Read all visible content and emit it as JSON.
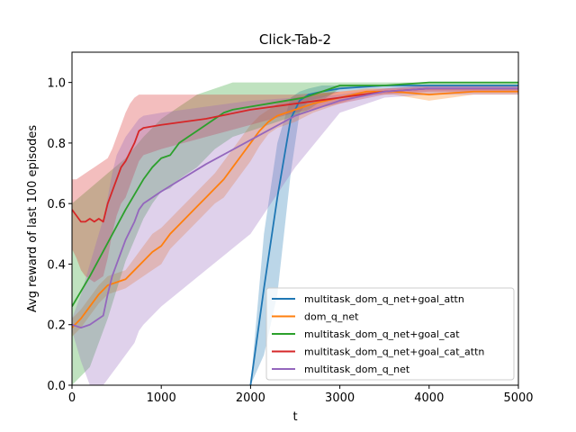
{
  "chart_data": {
    "type": "line",
    "title": "Click-Tab-2",
    "xlabel": "t",
    "ylabel": "Avg reward of last 100 episodes",
    "xlim": [
      0,
      5000
    ],
    "ylim": [
      0,
      1.1
    ],
    "xticks": [
      0,
      1000,
      2000,
      3000,
      4000,
      5000
    ],
    "yticks": [
      0.0,
      0.2,
      0.4,
      0.6,
      0.8,
      1.0
    ],
    "xtick_labels": [
      "0",
      "1000",
      "2000",
      "3000",
      "4000",
      "5000"
    ],
    "ytick_labels": [
      "0.0",
      "0.2",
      "0.4",
      "0.6",
      "0.8",
      "1.0"
    ],
    "grid": false,
    "legend_position": "lower-right",
    "series": [
      {
        "name": "multitask_dom_q_net+goal_attn",
        "color": "#1f77b4",
        "x": [
          2000,
          2150,
          2300,
          2450,
          2550,
          2650,
          2800,
          3000,
          3500,
          4000,
          4500,
          5000
        ],
        "y": [
          0.0,
          0.32,
          0.62,
          0.88,
          0.94,
          0.96,
          0.97,
          0.98,
          0.99,
          0.99,
          0.99,
          0.99
        ],
        "band_upper": [
          0.0,
          0.5,
          0.8,
          0.95,
          0.97,
          0.98,
          0.99,
          0.99,
          0.99,
          0.99,
          0.99,
          0.99
        ],
        "band_lower": [
          0.0,
          0.1,
          0.3,
          0.7,
          0.9,
          0.94,
          0.95,
          0.97,
          0.98,
          0.98,
          0.98,
          0.98
        ]
      },
      {
        "name": "dom_q_net",
        "color": "#ff7f0e",
        "x": [
          0,
          100,
          200,
          300,
          400,
          500,
          600,
          700,
          800,
          900,
          1000,
          1100,
          1200,
          1300,
          1400,
          1500,
          1600,
          1700,
          1800,
          1900,
          2000,
          2100,
          2200,
          2300,
          2400,
          2500,
          2700,
          3000,
          3300,
          3600,
          4000,
          4500,
          5000
        ],
        "y": [
          0.19,
          0.22,
          0.26,
          0.3,
          0.33,
          0.34,
          0.35,
          0.38,
          0.41,
          0.44,
          0.46,
          0.5,
          0.53,
          0.56,
          0.59,
          0.62,
          0.65,
          0.68,
          0.72,
          0.76,
          0.8,
          0.84,
          0.87,
          0.89,
          0.9,
          0.91,
          0.93,
          0.95,
          0.97,
          0.97,
          0.96,
          0.97,
          0.97
        ],
        "band_upper": [
          0.22,
          0.25,
          0.29,
          0.33,
          0.36,
          0.37,
          0.38,
          0.42,
          0.46,
          0.5,
          0.52,
          0.55,
          0.58,
          0.61,
          0.64,
          0.67,
          0.7,
          0.74,
          0.78,
          0.82,
          0.86,
          0.89,
          0.91,
          0.93,
          0.94,
          0.95,
          0.96,
          0.97,
          0.98,
          0.98,
          0.98,
          0.98,
          0.98
        ],
        "band_lower": [
          0.16,
          0.19,
          0.23,
          0.27,
          0.3,
          0.31,
          0.32,
          0.34,
          0.36,
          0.38,
          0.4,
          0.45,
          0.48,
          0.51,
          0.54,
          0.57,
          0.6,
          0.62,
          0.66,
          0.7,
          0.74,
          0.79,
          0.83,
          0.85,
          0.86,
          0.87,
          0.9,
          0.93,
          0.96,
          0.96,
          0.94,
          0.96,
          0.96
        ]
      },
      {
        "name": "multitask_dom_q_net+goal_cat",
        "color": "#2ca02c",
        "x": [
          0,
          200,
          400,
          600,
          800,
          900,
          1000,
          1100,
          1200,
          1300,
          1400,
          1500,
          1600,
          1700,
          1800,
          2000,
          2200,
          2400,
          2600,
          2800,
          3000,
          3500,
          4000,
          4500,
          5000
        ],
        "y": [
          0.26,
          0.36,
          0.47,
          0.58,
          0.68,
          0.72,
          0.75,
          0.76,
          0.8,
          0.82,
          0.84,
          0.86,
          0.88,
          0.9,
          0.91,
          0.92,
          0.93,
          0.94,
          0.95,
          0.97,
          0.99,
          0.99,
          1.0,
          1.0,
          1.0
        ],
        "band_upper": [
          0.6,
          0.65,
          0.7,
          0.75,
          0.82,
          0.85,
          0.88,
          0.9,
          0.92,
          0.94,
          0.96,
          0.97,
          0.98,
          0.99,
          1.0,
          1.0,
          1.0,
          1.0,
          1.0,
          1.0,
          1.0,
          1.0,
          1.0,
          1.0,
          1.0
        ],
        "band_lower": [
          0.0,
          0.06,
          0.22,
          0.41,
          0.55,
          0.6,
          0.64,
          0.65,
          0.68,
          0.7,
          0.72,
          0.75,
          0.78,
          0.8,
          0.82,
          0.84,
          0.86,
          0.88,
          0.9,
          0.94,
          0.98,
          0.99,
          0.99,
          0.99,
          0.99
        ]
      },
      {
        "name": "multitask_dom_q_net+goal_cat_attn",
        "color": "#d62728",
        "x": [
          0,
          50,
          100,
          150,
          200,
          250,
          300,
          350,
          400,
          450,
          500,
          550,
          600,
          650,
          700,
          750,
          800,
          1000,
          1500,
          2000,
          2500,
          3000,
          3500,
          4000,
          4500,
          5000
        ],
        "y": [
          0.58,
          0.56,
          0.54,
          0.54,
          0.55,
          0.54,
          0.55,
          0.54,
          0.6,
          0.64,
          0.68,
          0.72,
          0.74,
          0.77,
          0.8,
          0.84,
          0.85,
          0.86,
          0.88,
          0.91,
          0.93,
          0.95,
          0.97,
          0.98,
          0.98,
          0.98
        ],
        "band_upper": [
          0.68,
          0.68,
          0.69,
          0.7,
          0.71,
          0.72,
          0.73,
          0.74,
          0.75,
          0.78,
          0.82,
          0.86,
          0.9,
          0.93,
          0.95,
          0.96,
          0.96,
          0.96,
          0.96,
          0.96,
          0.96,
          0.97,
          0.98,
          0.99,
          0.99,
          0.99
        ],
        "band_lower": [
          0.45,
          0.42,
          0.38,
          0.36,
          0.35,
          0.34,
          0.35,
          0.36,
          0.42,
          0.5,
          0.56,
          0.6,
          0.62,
          0.66,
          0.7,
          0.74,
          0.76,
          0.78,
          0.82,
          0.86,
          0.9,
          0.93,
          0.96,
          0.97,
          0.97,
          0.97
        ]
      },
      {
        "name": "multitask_dom_q_net",
        "color": "#9467bd",
        "x": [
          0,
          100,
          200,
          300,
          350,
          400,
          450,
          500,
          600,
          700,
          750,
          800,
          1000,
          1500,
          2000,
          2500,
          3000,
          3500,
          4000,
          4500,
          5000
        ],
        "y": [
          0.2,
          0.19,
          0.2,
          0.22,
          0.23,
          0.3,
          0.36,
          0.4,
          0.48,
          0.54,
          0.58,
          0.6,
          0.64,
          0.73,
          0.81,
          0.89,
          0.94,
          0.97,
          0.98,
          0.98,
          0.98
        ],
        "band_upper": [
          0.22,
          0.3,
          0.4,
          0.5,
          0.55,
          0.62,
          0.7,
          0.76,
          0.82,
          0.86,
          0.88,
          0.89,
          0.9,
          0.92,
          0.94,
          0.95,
          0.96,
          0.98,
          0.99,
          0.99,
          0.99
        ],
        "band_lower": [
          0.18,
          0.08,
          0.0,
          0.0,
          0.0,
          0.02,
          0.04,
          0.06,
          0.1,
          0.14,
          0.18,
          0.2,
          0.26,
          0.38,
          0.5,
          0.72,
          0.9,
          0.95,
          0.96,
          0.96,
          0.96
        ]
      }
    ]
  }
}
